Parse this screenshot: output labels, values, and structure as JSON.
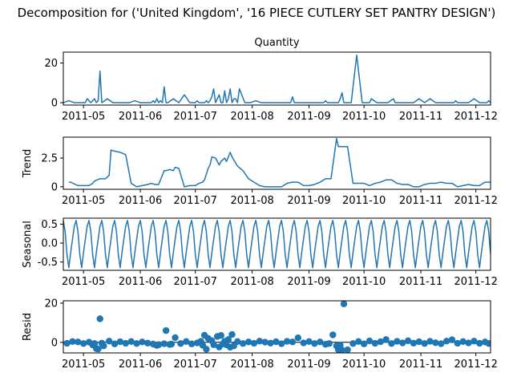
{
  "figure": {
    "suptitle": "Decomposition for ('United Kingdom', '16 PIECE CUTLERY SET PANTRY DESIGN')",
    "date_ticks": [
      "2011-05",
      "2011-06",
      "2011-07",
      "2011-08",
      "2011-09",
      "2011-10",
      "2011-11",
      "2011-12"
    ],
    "line_color": "#1f77b4"
  },
  "chart_data": [
    {
      "type": "line",
      "title": "Quantity",
      "ylabel": "",
      "ylim": [
        -1.2,
        25.5
      ],
      "yticks": [
        0,
        20
      ],
      "xlim": [
        "2011-04-20",
        "2011-12-09"
      ],
      "x": [
        "2011-04-20",
        "2011-04-23",
        "2011-04-26",
        "2011-04-29",
        "2011-05-02",
        "2011-05-03",
        "2011-05-04",
        "2011-05-05",
        "2011-05-06",
        "2011-05-07",
        "2011-05-08",
        "2011-05-09",
        "2011-05-10",
        "2011-05-11",
        "2011-05-14",
        "2011-05-17",
        "2011-05-20",
        "2011-05-23",
        "2011-05-26",
        "2011-05-29",
        "2011-06-01",
        "2011-06-04",
        "2011-06-07",
        "2011-06-08",
        "2011-06-09",
        "2011-06-10",
        "2011-06-11",
        "2011-06-12",
        "2011-06-13",
        "2011-06-14",
        "2011-06-15",
        "2011-06-16",
        "2011-06-19",
        "2011-06-22",
        "2011-06-25",
        "2011-06-28",
        "2011-07-01",
        "2011-07-02",
        "2011-07-03",
        "2011-07-04",
        "2011-07-05",
        "2011-07-06",
        "2011-07-07",
        "2011-07-08",
        "2011-07-09",
        "2011-07-10",
        "2011-07-11",
        "2011-07-12",
        "2011-07-13",
        "2011-07-14",
        "2011-07-15",
        "2011-07-16",
        "2011-07-17",
        "2011-07-18",
        "2011-07-19",
        "2011-07-20",
        "2011-07-21",
        "2011-07-22",
        "2011-07-23",
        "2011-07-24",
        "2011-07-25",
        "2011-07-28",
        "2011-07-31",
        "2011-08-03",
        "2011-08-06",
        "2011-08-09",
        "2011-08-12",
        "2011-08-15",
        "2011-08-18",
        "2011-08-21",
        "2011-08-22",
        "2011-08-23",
        "2011-08-24",
        "2011-08-27",
        "2011-08-30",
        "2011-09-02",
        "2011-09-05",
        "2011-09-08",
        "2011-09-09",
        "2011-09-10",
        "2011-09-11",
        "2011-09-14",
        "2011-09-17",
        "2011-09-18",
        "2011-09-19",
        "2011-09-20",
        "2011-09-21",
        "2011-09-24",
        "2011-09-27",
        "2011-09-30",
        "2011-10-03",
        "2011-10-04",
        "2011-10-05",
        "2011-10-08",
        "2011-10-11",
        "2011-10-14",
        "2011-10-17",
        "2011-10-18",
        "2011-10-19",
        "2011-10-20",
        "2011-10-21",
        "2011-10-22",
        "2011-10-25",
        "2011-10-28",
        "2011-10-31",
        "2011-11-03",
        "2011-11-06",
        "2011-11-09",
        "2011-11-12",
        "2011-11-15",
        "2011-11-16",
        "2011-11-17",
        "2011-11-18",
        "2011-11-19",
        "2011-11-20",
        "2011-11-21",
        "2011-11-24",
        "2011-11-27",
        "2011-11-30",
        "2011-12-03",
        "2011-12-06",
        "2011-12-07",
        "2011-12-08",
        "2011-12-09"
      ],
      "values": [
        0,
        1,
        0,
        0,
        0,
        2,
        1,
        0,
        1,
        2,
        0,
        1,
        16,
        0,
        2,
        0,
        0,
        0,
        0,
        1,
        0,
        0,
        0,
        1,
        0,
        2,
        0,
        1,
        0,
        8,
        0,
        0,
        2,
        0,
        4,
        0,
        0,
        1,
        0,
        0,
        0,
        0,
        1,
        0,
        1,
        3,
        7,
        0,
        2,
        4,
        0,
        0,
        6,
        0,
        2,
        7,
        0,
        2,
        2,
        0,
        7,
        0,
        0,
        1,
        0,
        0,
        0,
        0,
        0,
        0,
        0,
        3,
        0,
        0,
        0,
        0,
        0,
        0,
        0,
        1,
        0,
        0,
        0,
        2,
        5,
        0,
        0,
        0,
        24,
        0,
        0,
        0,
        2,
        0,
        0,
        0,
        2,
        0,
        0,
        0,
        0,
        0,
        0,
        0,
        2,
        0,
        2,
        0,
        0,
        0,
        0,
        0,
        0,
        0,
        1,
        0,
        0,
        0,
        2,
        0,
        0,
        0,
        1,
        0
      ]
    },
    {
      "type": "line",
      "title": "",
      "ylabel": "Trend",
      "ylim": [
        -0.22,
        4.32
      ],
      "yticks": [
        0.0,
        2.5
      ],
      "xlim": [
        "2011-04-20",
        "2011-12-09"
      ],
      "x": [
        "2011-04-23",
        "2011-04-24",
        "2011-04-28",
        "2011-05-01",
        "2011-05-02",
        "2011-05-04",
        "2011-05-06",
        "2011-05-07",
        "2011-05-10",
        "2011-05-13",
        "2011-05-15",
        "2011-05-16",
        "2011-05-18",
        "2011-05-21",
        "2011-05-24",
        "2011-05-27",
        "2011-05-30",
        "2011-06-02",
        "2011-06-05",
        "2011-06-07",
        "2011-06-09",
        "2011-06-11",
        "2011-06-14",
        "2011-06-15",
        "2011-06-17",
        "2011-06-19",
        "2011-06-20",
        "2011-06-22",
        "2011-06-25",
        "2011-06-28",
        "2011-07-01",
        "2011-07-03",
        "2011-07-05",
        "2011-07-06",
        "2011-07-08",
        "2011-07-09",
        "2011-07-10",
        "2011-07-12",
        "2011-07-14",
        "2011-07-15",
        "2011-07-17",
        "2011-07-18",
        "2011-07-20",
        "2011-07-21",
        "2011-07-24",
        "2011-07-27",
        "2011-07-30",
        "2011-08-02",
        "2011-08-05",
        "2011-08-08",
        "2011-08-11",
        "2011-08-14",
        "2011-08-17",
        "2011-08-20",
        "2011-08-23",
        "2011-08-26",
        "2011-08-29",
        "2011-09-01",
        "2011-09-04",
        "2011-09-07",
        "2011-09-10",
        "2011-09-13",
        "2011-09-16",
        "2011-09-17",
        "2011-09-19",
        "2011-09-22",
        "2011-09-25",
        "2011-09-28",
        "2011-10-01",
        "2011-10-04",
        "2011-10-07",
        "2011-10-10",
        "2011-10-13",
        "2011-10-16",
        "2011-10-19",
        "2011-10-22",
        "2011-10-25",
        "2011-10-28",
        "2011-10-31",
        "2011-11-03",
        "2011-11-06",
        "2011-11-09",
        "2011-11-12",
        "2011-11-15",
        "2011-11-18",
        "2011-11-21",
        "2011-11-24",
        "2011-11-27",
        "2011-11-30",
        "2011-12-03",
        "2011-12-06",
        "2011-12-09"
      ],
      "values": [
        0.4,
        0.4,
        0.1,
        0.1,
        0.1,
        0.1,
        0.3,
        0.5,
        0.7,
        0.7,
        1.0,
        3.2,
        3.1,
        3.0,
        2.8,
        0.3,
        0.0,
        0.1,
        0.2,
        0.3,
        0.2,
        0.2,
        1.4,
        1.4,
        1.5,
        1.4,
        1.7,
        1.6,
        0.0,
        0.1,
        0.1,
        0.3,
        0.4,
        0.6,
        1.6,
        1.9,
        2.6,
        2.5,
        1.9,
        2.2,
        2.5,
        2.2,
        3.0,
        2.6,
        1.8,
        1.4,
        0.7,
        0.4,
        0.1,
        0.0,
        0.0,
        0.0,
        0.0,
        0.3,
        0.4,
        0.4,
        0.1,
        0.1,
        0.2,
        0.4,
        0.7,
        0.7,
        4.2,
        3.5,
        3.5,
        3.5,
        0.3,
        0.3,
        0.3,
        0.1,
        0.3,
        0.4,
        0.6,
        0.6,
        0.3,
        0.2,
        0.2,
        0.0,
        0.0,
        0.2,
        0.3,
        0.3,
        0.4,
        0.3,
        0.3,
        0.0,
        0.1,
        0.2,
        0.1,
        0.1,
        0.4,
        0.4
      ]
    },
    {
      "type": "line",
      "title": "",
      "ylabel": "Seasonal",
      "ylim": [
        -0.72,
        0.66
      ],
      "yticks": [
        0.5,
        0.0,
        -0.5
      ],
      "xlim": [
        "2011-04-20",
        "2011-12-09"
      ],
      "period_days": 7,
      "pattern": [
        0.6,
        0.3,
        -0.3,
        -0.65,
        -0.25,
        0.1,
        0.45
      ],
      "x_start": "2011-04-20",
      "x_end": "2011-12-09"
    },
    {
      "type": "scatter",
      "title": "",
      "ylabel": "Resid",
      "ylim": [
        -5.4,
        21.2
      ],
      "yticks": [
        0,
        20
      ],
      "xlim": [
        "2011-04-20",
        "2011-12-09"
      ],
      "baseline": 0,
      "x": [
        "2011-04-22",
        "2011-04-25",
        "2011-04-28",
        "2011-05-01",
        "2011-05-04",
        "2011-05-06",
        "2011-05-07",
        "2011-05-08",
        "2011-05-09",
        "2011-05-10",
        "2011-05-11",
        "2011-05-12",
        "2011-05-15",
        "2011-05-18",
        "2011-05-21",
        "2011-05-24",
        "2011-05-27",
        "2011-05-30",
        "2011-06-02",
        "2011-06-05",
        "2011-06-08",
        "2011-06-10",
        "2011-06-11",
        "2011-06-14",
        "2011-06-15",
        "2011-06-17",
        "2011-06-18",
        "2011-06-20",
        "2011-06-23",
        "2011-06-26",
        "2011-06-29",
        "2011-07-02",
        "2011-07-04",
        "2011-07-05",
        "2011-07-06",
        "2011-07-07",
        "2011-07-08",
        "2011-07-10",
        "2011-07-11",
        "2011-07-13",
        "2011-07-14",
        "2011-07-15",
        "2011-07-16",
        "2011-07-17",
        "2011-07-18",
        "2011-07-19",
        "2011-07-20",
        "2011-07-21",
        "2011-07-22",
        "2011-07-24",
        "2011-07-27",
        "2011-07-30",
        "2011-08-02",
        "2011-08-05",
        "2011-08-08",
        "2011-08-11",
        "2011-08-14",
        "2011-08-17",
        "2011-08-20",
        "2011-08-23",
        "2011-08-26",
        "2011-08-29",
        "2011-09-01",
        "2011-09-04",
        "2011-09-07",
        "2011-09-10",
        "2011-09-12",
        "2011-09-14",
        "2011-09-16",
        "2011-09-17",
        "2011-09-18",
        "2011-09-19",
        "2011-09-20",
        "2011-09-22",
        "2011-09-25",
        "2011-09-28",
        "2011-10-01",
        "2011-10-04",
        "2011-10-07",
        "2011-10-10",
        "2011-10-13",
        "2011-10-16",
        "2011-10-19",
        "2011-10-22",
        "2011-10-25",
        "2011-10-28",
        "2011-10-31",
        "2011-11-03",
        "2011-11-06",
        "2011-11-09",
        "2011-11-12",
        "2011-11-15",
        "2011-11-18",
        "2011-11-21",
        "2011-11-24",
        "2011-11-27",
        "2011-11-30",
        "2011-12-03",
        "2011-12-06",
        "2011-12-08"
      ],
      "values": [
        -0.5,
        0.4,
        0.2,
        -0.6,
        0.1,
        -1.3,
        -0.6,
        -3.2,
        -3.4,
        12.0,
        -0.4,
        -1.8,
        0.6,
        -0.8,
        0.3,
        -0.5,
        0.4,
        -0.6,
        0.2,
        -0.4,
        -0.9,
        -1.6,
        -1.2,
        -0.7,
        6.0,
        -1.1,
        -0.9,
        2.4,
        -0.6,
        0.4,
        -0.8,
        -0.3,
        0.5,
        -1.5,
        3.6,
        -3.5,
        2.0,
        0.8,
        -1.2,
        3.0,
        -2.4,
        3.5,
        -0.8,
        0.5,
        -1.3,
        1.4,
        -2.5,
        4.0,
        -1.8,
        0.4,
        -0.6,
        0.2,
        -0.5,
        0.6,
        0.1,
        -0.4,
        0.3,
        -0.7,
        0.5,
        0.2,
        2.3,
        -0.3,
        0.4,
        -0.6,
        0.2,
        -1.0,
        -0.6,
        3.8,
        -1.8,
        -3.8,
        -1.4,
        -4.0,
        19.6,
        -3.8,
        -0.6,
        0.4,
        -0.8,
        0.7,
        -0.5,
        0.3,
        1.4,
        -0.6,
        0.5,
        -0.3,
        0.8,
        -0.4,
        0.3,
        -0.6,
        0.5,
        -0.2,
        -0.7,
        0.6,
        1.3,
        -0.5,
        0.4,
        -0.3,
        0.6,
        -0.5,
        0.2,
        -0.6
      ]
    }
  ]
}
